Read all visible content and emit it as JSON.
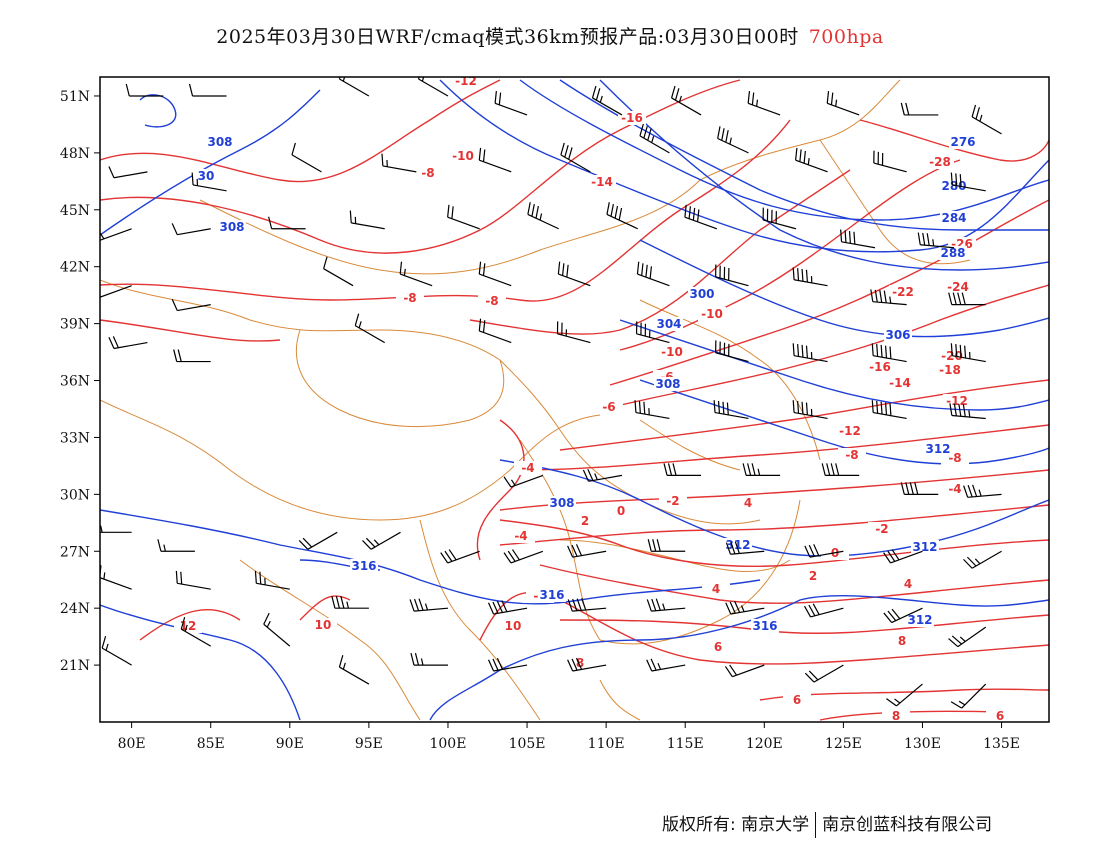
{
  "title": {
    "main": "2025年03月30日WRF/cmaq模式36km预报产品:03月30日00时",
    "level": "700hpa",
    "level_color": "#e33333"
  },
  "map": {
    "lon_range": [
      78,
      138
    ],
    "lat_range": [
      18,
      52
    ],
    "lon_ticks": [
      {
        "value": 80,
        "label": "80E"
      },
      {
        "value": 85,
        "label": "85E"
      },
      {
        "value": 90,
        "label": "90E"
      },
      {
        "value": 95,
        "label": "95E"
      },
      {
        "value": 100,
        "label": "100E"
      },
      {
        "value": 105,
        "label": "105E"
      },
      {
        "value": 110,
        "label": "110E"
      },
      {
        "value": 115,
        "label": "115E"
      },
      {
        "value": 120,
        "label": "120E"
      },
      {
        "value": 125,
        "label": "125E"
      },
      {
        "value": 130,
        "label": "130E"
      },
      {
        "value": 135,
        "label": "135E"
      }
    ],
    "lat_ticks": [
      {
        "value": 51,
        "label": "51N"
      },
      {
        "value": 48,
        "label": "48N"
      },
      {
        "value": 45,
        "label": "45N"
      },
      {
        "value": 42,
        "label": "42N"
      },
      {
        "value": 39,
        "label": "39N"
      },
      {
        "value": 36,
        "label": "36N"
      },
      {
        "value": 33,
        "label": "33N"
      },
      {
        "value": 30,
        "label": "30N"
      },
      {
        "value": 27,
        "label": "27N"
      },
      {
        "value": 24,
        "label": "24N"
      },
      {
        "value": 21,
        "label": "21N"
      }
    ],
    "colors": {
      "temperature": "#e33333",
      "height": "#1f3fd6",
      "boundary": "#d98a3a",
      "wind": "#000000"
    },
    "temperature_labels": [
      "-12",
      "-16",
      "-10",
      "-8",
      "-14",
      "-8",
      "-8",
      "-28",
      "-26",
      "-22",
      "-24",
      "-20",
      "-18",
      "-16",
      "-14",
      "-12",
      "-10",
      "-12",
      "-10",
      "-8",
      "-6",
      "-8",
      "-6",
      "-4",
      "-4",
      "-2",
      "0",
      "2",
      "4",
      "-4",
      "-2",
      "0",
      "2",
      "4",
      "4",
      "-2",
      "10",
      "12",
      "10",
      "6",
      "8",
      "8",
      "6",
      "8",
      "6"
    ],
    "height_labels": [
      "308",
      "30",
      "308",
      "276",
      "280",
      "284",
      "288",
      "300",
      "304",
      "308",
      "306",
      "308",
      "312",
      "312",
      "312",
      "316",
      "316",
      "316",
      "312"
    ],
    "wind_barbs": [
      {
        "lon": 82,
        "lat": 51,
        "dir": 270,
        "kt": 10
      },
      {
        "lon": 86,
        "lat": 51,
        "dir": 270,
        "kt": 10
      },
      {
        "lon": 95,
        "lat": 51,
        "dir": 300,
        "kt": 20
      },
      {
        "lon": 100,
        "lat": 51,
        "dir": 300,
        "kt": 20
      },
      {
        "lon": 105,
        "lat": 50,
        "dir": 290,
        "kt": 20
      },
      {
        "lon": 111,
        "lat": 50,
        "dir": 300,
        "kt": 25
      },
      {
        "lon": 116,
        "lat": 50,
        "dir": 300,
        "kt": 25
      },
      {
        "lon": 121,
        "lat": 50,
        "dir": 290,
        "kt": 25
      },
      {
        "lon": 126,
        "lat": 50,
        "dir": 290,
        "kt": 25
      },
      {
        "lon": 131,
        "lat": 50,
        "dir": 270,
        "kt": 20
      },
      {
        "lon": 135,
        "lat": 49,
        "dir": 300,
        "kt": 25
      },
      {
        "lon": 81,
        "lat": 47,
        "dir": 260,
        "kt": 10
      },
      {
        "lon": 86,
        "lat": 46,
        "dir": 280,
        "kt": 15
      },
      {
        "lon": 92,
        "lat": 47,
        "dir": 300,
        "kt": 10
      },
      {
        "lon": 98,
        "lat": 47,
        "dir": 280,
        "kt": 15
      },
      {
        "lon": 104,
        "lat": 47,
        "dir": 290,
        "kt": 20
      },
      {
        "lon": 109,
        "lat": 47,
        "dir": 300,
        "kt": 30
      },
      {
        "lon": 114,
        "lat": 48,
        "dir": 300,
        "kt": 35
      },
      {
        "lon": 119,
        "lat": 48,
        "dir": 295,
        "kt": 35
      },
      {
        "lon": 124,
        "lat": 47,
        "dir": 290,
        "kt": 35
      },
      {
        "lon": 129,
        "lat": 47,
        "dir": 285,
        "kt": 30
      },
      {
        "lon": 134,
        "lat": 46,
        "dir": 280,
        "kt": 30
      },
      {
        "lon": 80,
        "lat": 44,
        "dir": 250,
        "kt": 15
      },
      {
        "lon": 85,
        "lat": 44,
        "dir": 260,
        "kt": 10
      },
      {
        "lon": 91,
        "lat": 44,
        "dir": 270,
        "kt": 10
      },
      {
        "lon": 96,
        "lat": 44,
        "dir": 280,
        "kt": 15
      },
      {
        "lon": 102,
        "lat": 44,
        "dir": 290,
        "kt": 20
      },
      {
        "lon": 107,
        "lat": 44,
        "dir": 295,
        "kt": 35
      },
      {
        "lon": 112,
        "lat": 44,
        "dir": 295,
        "kt": 40
      },
      {
        "lon": 117,
        "lat": 44,
        "dir": 290,
        "kt": 40
      },
      {
        "lon": 122,
        "lat": 44,
        "dir": 285,
        "kt": 40
      },
      {
        "lon": 127,
        "lat": 43,
        "dir": 280,
        "kt": 40
      },
      {
        "lon": 132,
        "lat": 43,
        "dir": 275,
        "kt": 35
      },
      {
        "lon": 80,
        "lat": 41,
        "dir": 250,
        "kt": 10
      },
      {
        "lon": 85,
        "lat": 40,
        "dir": 260,
        "kt": 10
      },
      {
        "lon": 94,
        "lat": 41,
        "dir": 300,
        "kt": 10
      },
      {
        "lon": 99,
        "lat": 41,
        "dir": 290,
        "kt": 15
      },
      {
        "lon": 104,
        "lat": 41,
        "dir": 290,
        "kt": 20
      },
      {
        "lon": 109,
        "lat": 41,
        "dir": 290,
        "kt": 30
      },
      {
        "lon": 114,
        "lat": 41,
        "dir": 290,
        "kt": 40
      },
      {
        "lon": 119,
        "lat": 41,
        "dir": 285,
        "kt": 40
      },
      {
        "lon": 124,
        "lat": 41,
        "dir": 280,
        "kt": 45
      },
      {
        "lon": 129,
        "lat": 40,
        "dir": 275,
        "kt": 45
      },
      {
        "lon": 134,
        "lat": 40,
        "dir": 270,
        "kt": 40
      },
      {
        "lon": 81,
        "lat": 38,
        "dir": 260,
        "kt": 20
      },
      {
        "lon": 85,
        "lat": 37,
        "dir": 270,
        "kt": 20
      },
      {
        "lon": 96,
        "lat": 38,
        "dir": 300,
        "kt": 15
      },
      {
        "lon": 104,
        "lat": 38,
        "dir": 290,
        "kt": 20
      },
      {
        "lon": 109,
        "lat": 38,
        "dir": 285,
        "kt": 25
      },
      {
        "lon": 114,
        "lat": 38,
        "dir": 285,
        "kt": 35
      },
      {
        "lon": 119,
        "lat": 37,
        "dir": 285,
        "kt": 40
      },
      {
        "lon": 124,
        "lat": 37,
        "dir": 280,
        "kt": 45
      },
      {
        "lon": 129,
        "lat": 37,
        "dir": 280,
        "kt": 50
      },
      {
        "lon": 134,
        "lat": 37,
        "dir": 280,
        "kt": 45
      },
      {
        "lon": 114,
        "lat": 34,
        "dir": 280,
        "kt": 35
      },
      {
        "lon": 119,
        "lat": 34,
        "dir": 280,
        "kt": 40
      },
      {
        "lon": 124,
        "lat": 34,
        "dir": 280,
        "kt": 45
      },
      {
        "lon": 129,
        "lat": 34,
        "dir": 280,
        "kt": 50
      },
      {
        "lon": 134,
        "lat": 34,
        "dir": 275,
        "kt": 45
      },
      {
        "lon": 106,
        "lat": 31,
        "dir": 250,
        "kt": 15
      },
      {
        "lon": 111,
        "lat": 31,
        "dir": 260,
        "kt": 25
      },
      {
        "lon": 116,
        "lat": 31,
        "dir": 270,
        "kt": 30
      },
      {
        "lon": 121,
        "lat": 31,
        "dir": 270,
        "kt": 35
      },
      {
        "lon": 126,
        "lat": 31,
        "dir": 270,
        "kt": 40
      },
      {
        "lon": 131,
        "lat": 30,
        "dir": 270,
        "kt": 40
      },
      {
        "lon": 135,
        "lat": 30,
        "dir": 265,
        "kt": 35
      },
      {
        "lon": 80,
        "lat": 28,
        "dir": 270,
        "kt": 15
      },
      {
        "lon": 84,
        "lat": 27,
        "dir": 270,
        "kt": 15
      },
      {
        "lon": 93,
        "lat": 28,
        "dir": 240,
        "kt": 20
      },
      {
        "lon": 97,
        "lat": 28,
        "dir": 240,
        "kt": 25
      },
      {
        "lon": 102,
        "lat": 27,
        "dir": 250,
        "kt": 30
      },
      {
        "lon": 106,
        "lat": 27,
        "dir": 250,
        "kt": 30
      },
      {
        "lon": 110,
        "lat": 27,
        "dir": 260,
        "kt": 30
      },
      {
        "lon": 115,
        "lat": 27,
        "dir": 270,
        "kt": 30
      },
      {
        "lon": 120,
        "lat": 27,
        "dir": 265,
        "kt": 30
      },
      {
        "lon": 125,
        "lat": 27,
        "dir": 260,
        "kt": 30
      },
      {
        "lon": 130,
        "lat": 27,
        "dir": 250,
        "kt": 30
      },
      {
        "lon": 135,
        "lat": 27,
        "dir": 240,
        "kt": 25
      },
      {
        "lon": 80,
        "lat": 25,
        "dir": 290,
        "kt": 15
      },
      {
        "lon": 85,
        "lat": 25,
        "dir": 280,
        "kt": 20
      },
      {
        "lon": 90,
        "lat": 25,
        "dir": 280,
        "kt": 25
      },
      {
        "lon": 95,
        "lat": 24,
        "dir": 270,
        "kt": 35
      },
      {
        "lon": 100,
        "lat": 24,
        "dir": 265,
        "kt": 35
      },
      {
        "lon": 105,
        "lat": 24,
        "dir": 260,
        "kt": 40
      },
      {
        "lon": 110,
        "lat": 24,
        "dir": 265,
        "kt": 40
      },
      {
        "lon": 115,
        "lat": 24,
        "dir": 265,
        "kt": 35
      },
      {
        "lon": 120,
        "lat": 24,
        "dir": 260,
        "kt": 35
      },
      {
        "lon": 125,
        "lat": 24,
        "dir": 255,
        "kt": 30
      },
      {
        "lon": 130,
        "lat": 24,
        "dir": 245,
        "kt": 30
      },
      {
        "lon": 134,
        "lat": 23,
        "dir": 235,
        "kt": 25
      },
      {
        "lon": 80,
        "lat": 21,
        "dir": 300,
        "kt": 15
      },
      {
        "lon": 85,
        "lat": 22,
        "dir": 300,
        "kt": 15
      },
      {
        "lon": 90,
        "lat": 22,
        "dir": 310,
        "kt": 15
      },
      {
        "lon": 95,
        "lat": 20,
        "dir": 300,
        "kt": 15
      },
      {
        "lon": 100,
        "lat": 21,
        "dir": 270,
        "kt": 25
      },
      {
        "lon": 105,
        "lat": 21,
        "dir": 260,
        "kt": 30
      },
      {
        "lon": 110,
        "lat": 21,
        "dir": 260,
        "kt": 30
      },
      {
        "lon": 115,
        "lat": 21,
        "dir": 260,
        "kt": 25
      },
      {
        "lon": 120,
        "lat": 21,
        "dir": 250,
        "kt": 20
      },
      {
        "lon": 125,
        "lat": 21,
        "dir": 240,
        "kt": 20
      },
      {
        "lon": 130,
        "lat": 20,
        "dir": 230,
        "kt": 15
      },
      {
        "lon": 134,
        "lat": 20,
        "dir": 225,
        "kt": 15
      }
    ]
  },
  "footer": {
    "left": "版权所有: 南京大学",
    "right": "南京创蓝科技有限公司"
  }
}
